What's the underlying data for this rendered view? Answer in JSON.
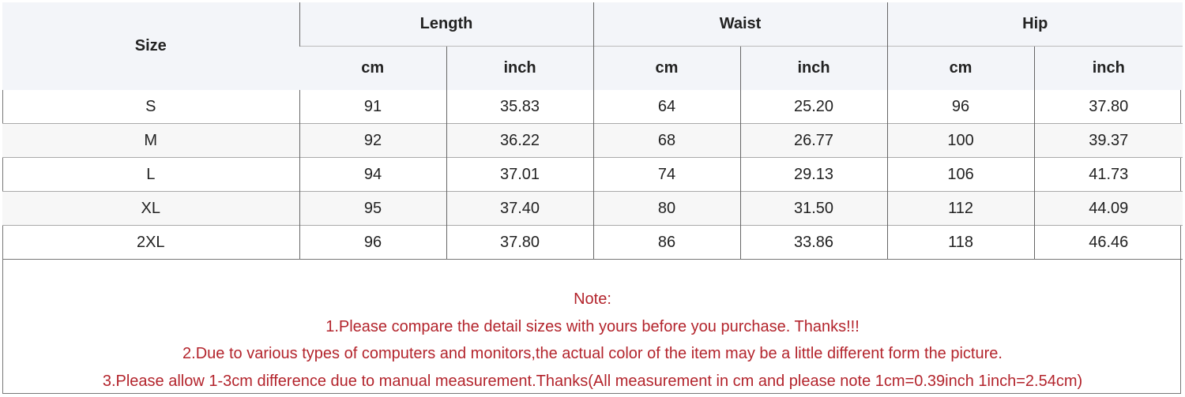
{
  "table": {
    "size_header": "Size",
    "groups": [
      "Length",
      "Waist",
      "Hip"
    ],
    "units": [
      "cm",
      "inch",
      "cm",
      "inch",
      "cm",
      "inch"
    ],
    "rows": [
      [
        "S",
        "91",
        "35.83",
        "64",
        "25.20",
        "96",
        "37.80"
      ],
      [
        "M",
        "92",
        "36.22",
        "68",
        "26.77",
        "100",
        "39.37"
      ],
      [
        "L",
        "94",
        "37.01",
        "74",
        "29.13",
        "106",
        "41.73"
      ],
      [
        "XL",
        "95",
        "37.40",
        "80",
        "31.50",
        "112",
        "44.09"
      ],
      [
        "2XL",
        "96",
        "37.80",
        "86",
        "33.86",
        "118",
        "46.46"
      ]
    ]
  },
  "notes": {
    "title": "Note:",
    "lines": [
      "1.Please compare the detail sizes with yours before you purchase. Thanks!!!",
      "2.Due to various types of computers and monitors,the actual color of the item may be a little different form the picture.",
      "3.Please allow 1-3cm difference due to manual measurement.Thanks(All measurement in cm and please note 1cm=0.39inch 1inch=2.54cm)"
    ]
  },
  "colors": {
    "note_text": "#b3242c",
    "header_bg": "#f3f5f9",
    "alt_row_bg": "#f7f7f7"
  }
}
